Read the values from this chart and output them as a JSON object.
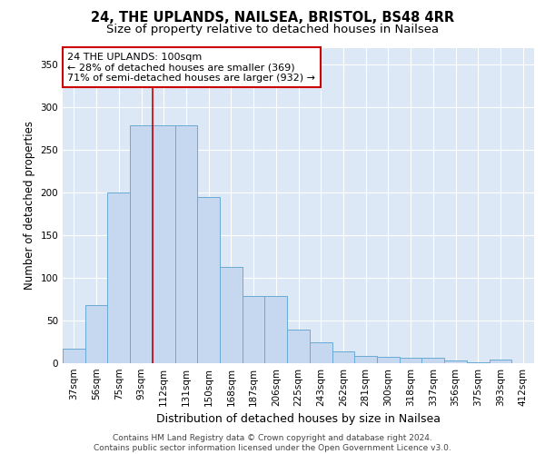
{
  "title1": "24, THE UPLANDS, NAILSEA, BRISTOL, BS48 4RR",
  "title2": "Size of property relative to detached houses in Nailsea",
  "xlabel": "Distribution of detached houses by size in Nailsea",
  "ylabel": "Number of detached properties",
  "categories": [
    "37sqm",
    "56sqm",
    "75sqm",
    "93sqm",
    "112sqm",
    "131sqm",
    "150sqm",
    "168sqm",
    "187sqm",
    "206sqm",
    "225sqm",
    "243sqm",
    "262sqm",
    "281sqm",
    "300sqm",
    "318sqm",
    "337sqm",
    "356sqm",
    "375sqm",
    "393sqm",
    "412sqm"
  ],
  "values": [
    17,
    68,
    200,
    279,
    279,
    279,
    195,
    113,
    79,
    79,
    39,
    25,
    14,
    9,
    7,
    6,
    6,
    3,
    1,
    4,
    0
  ],
  "bar_color": "#c5d8f0",
  "bar_edge_color": "#6aaad4",
  "background_color": "#dce8f5",
  "grid_color": "#ffffff",
  "annotation_text": "24 THE UPLANDS: 100sqm\n← 28% of detached houses are smaller (369)\n71% of semi-detached houses are larger (932) →",
  "annotation_box_color": "#ffffff",
  "annotation_box_edge": "#cc0000",
  "vline_color": "#cc0000",
  "vline_x": 3.5,
  "ylim": [
    0,
    370
  ],
  "yticks": [
    0,
    50,
    100,
    150,
    200,
    250,
    300,
    350
  ],
  "footer": "Contains HM Land Registry data © Crown copyright and database right 2024.\nContains public sector information licensed under the Open Government Licence v3.0.",
  "title1_fontsize": 10.5,
  "title2_fontsize": 9.5,
  "xlabel_fontsize": 9,
  "ylabel_fontsize": 8.5,
  "tick_fontsize": 7.5,
  "footer_fontsize": 6.5
}
